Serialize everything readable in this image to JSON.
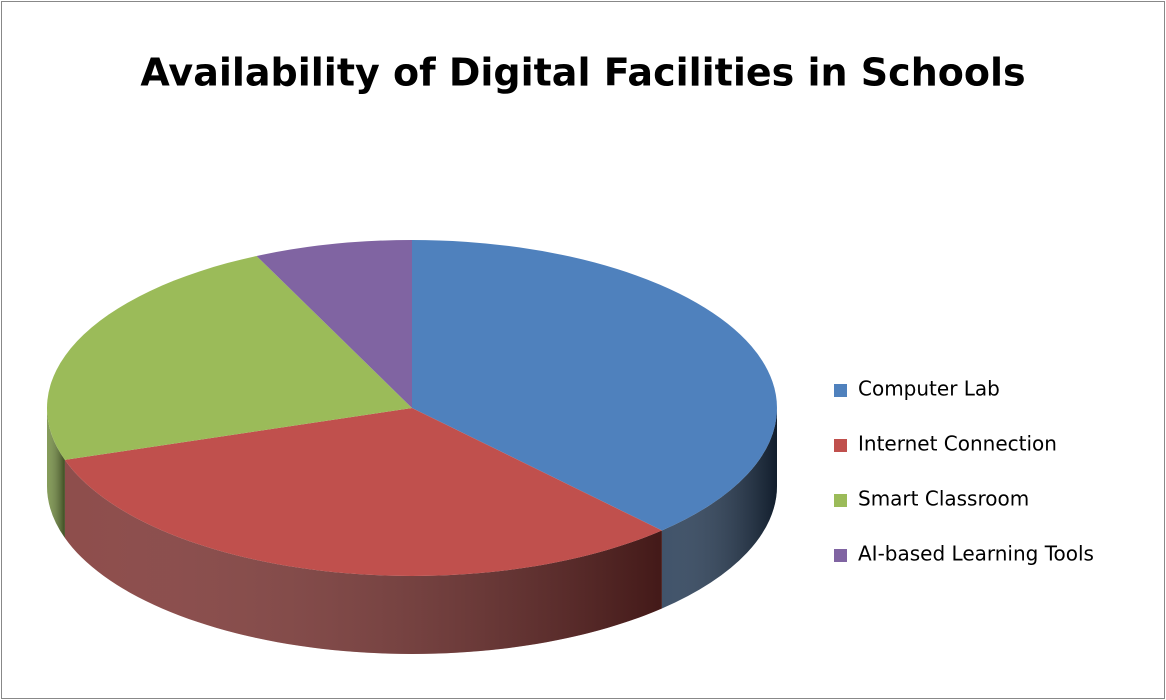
{
  "chart_data": {
    "type": "pie3d",
    "title": "Availability of Digital Facilities in Schools",
    "categories": [
      "Computer Lab",
      "Internet Connection",
      "Smart Classroom",
      "AI-based Learning Tools"
    ],
    "values": [
      38,
      32,
      23,
      7
    ],
    "colors": [
      "#4f81bd",
      "#c0504d",
      "#9bbb59",
      "#8064a2"
    ],
    "side_colors": [
      "#1f3550",
      "#7a2e2c",
      "#6f8a3c",
      "#554178"
    ]
  }
}
